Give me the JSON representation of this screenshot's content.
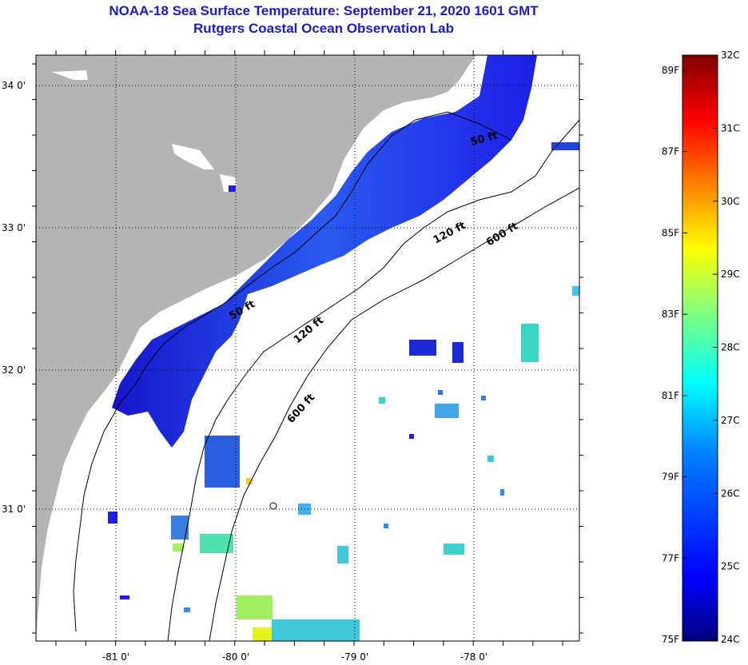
{
  "title": "NOAA-18 Sea Surface Temperature:  September 21, 2020 1601 GMT",
  "subtitle": "Rutgers Coastal Ocean Observation Lab",
  "lat_labels": [
    "34 0'",
    "33 0'",
    "32 0'",
    "31 0'"
  ],
  "lon_labels": [
    "-81 0'",
    "-80 0'",
    "-79 0'",
    "-78 0'"
  ],
  "contours": {
    "c50a": "50 ft",
    "c50b": "50 ft",
    "c120a": "120 ft",
    "c120b": "120 ft",
    "c600a": "600 ft",
    "c600b": "600 ft"
  },
  "colorbar": {
    "f_labels": [
      "89F",
      "87F",
      "85F",
      "83F",
      "81F",
      "79F",
      "77F",
      "75F"
    ],
    "c_labels": [
      "32C",
      "31C",
      "30C",
      "29C",
      "28C",
      "27C",
      "26C",
      "25C",
      "24C"
    ],
    "colors": [
      "#7f0000",
      "#ff0000",
      "#ff8000",
      "#ffff00",
      "#80ff80",
      "#00ffff",
      "#0080ff",
      "#0000ff",
      "#00007f"
    ]
  },
  "land_color": "#b4b4b4",
  "sst_cold_color": "#1e1ee6"
}
